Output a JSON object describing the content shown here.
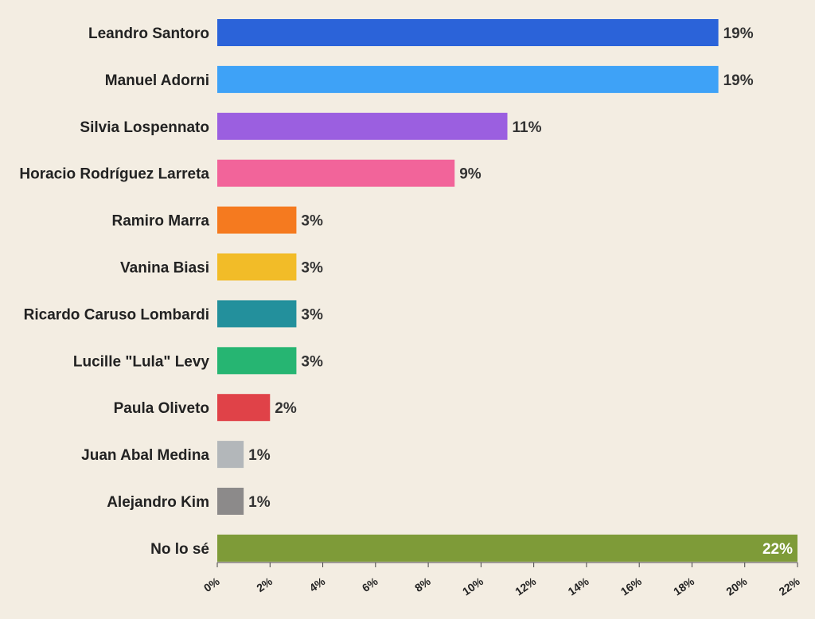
{
  "chart_data": {
    "type": "bar",
    "orientation": "horizontal",
    "categories": [
      "Leandro Santoro",
      "Manuel Adorni",
      "Silvia Lospennato",
      "Horacio Rodríguez Larreta",
      "Ramiro Marra",
      "Vanina Biasi",
      "Ricardo Caruso Lombardi",
      "Lucille \"Lula\" Levy",
      "Paula Oliveto",
      "Juan Abal Medina",
      "Alejandro Kim",
      "No lo sé"
    ],
    "values": [
      19,
      19,
      11,
      9,
      3,
      3,
      3,
      3,
      2,
      1,
      1,
      22
    ],
    "value_labels": [
      "19%",
      "19%",
      "11%",
      "9%",
      "3%",
      "3%",
      "3%",
      "3%",
      "2%",
      "1%",
      "1%",
      "22%"
    ],
    "colors": [
      "#2b63d9",
      "#3ea2f7",
      "#9b5fe0",
      "#f2649a",
      "#f57a1f",
      "#f2bc28",
      "#23909c",
      "#26b572",
      "#e04248",
      "#b3b7ba",
      "#8c8a8a",
      "#7e9b38"
    ],
    "xlim": [
      0,
      22
    ],
    "xticks": [
      0,
      2,
      4,
      6,
      8,
      10,
      12,
      14,
      16,
      18,
      20,
      22
    ],
    "xtick_labels": [
      "0%",
      "2%",
      "4%",
      "6%",
      "8%",
      "10%",
      "12%",
      "14%",
      "16%",
      "18%",
      "20%",
      "22%"
    ],
    "title": "",
    "xlabel": "",
    "ylabel": "",
    "grid": false,
    "legend": "none"
  },
  "colors": {
    "background": "#f3ede2",
    "axis": "#444444",
    "label": "#222222"
  }
}
